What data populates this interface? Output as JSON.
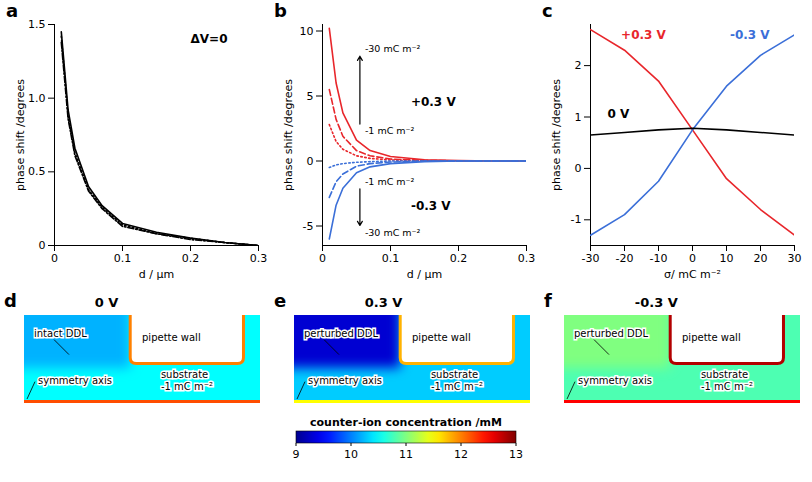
{
  "chart_data": [
    {
      "panel": "a",
      "type": "line",
      "x": [
        0.01,
        0.02,
        0.03,
        0.05,
        0.07,
        0.1,
        0.15,
        0.2,
        0.25,
        0.3
      ],
      "series": [
        {
          "color": "#000000",
          "line_style": "solid",
          "values": [
            1.45,
            0.92,
            0.66,
            0.4,
            0.27,
            0.15,
            0.09,
            0.05,
            0.02,
            0
          ]
        },
        {
          "color": "#000000",
          "line_style": "dashdot",
          "values": [
            1.38,
            0.86,
            0.61,
            0.37,
            0.25,
            0.13,
            0.08,
            0.04,
            0.02,
            0
          ]
        },
        {
          "color": "#000000",
          "line_style": "dotted",
          "values": [
            1.42,
            0.88,
            0.63,
            0.38,
            0.26,
            0.14,
            0.08,
            0.05,
            0.02,
            0
          ]
        }
      ],
      "xlabel": "d / μm",
      "ylabel": "phase shift /degrees",
      "xlim": [
        0,
        0.3
      ],
      "xticks": [
        0,
        0.1,
        0.2,
        0.3
      ],
      "ylim": [
        0,
        1.5
      ],
      "yticks": [
        0,
        0.5,
        {
          "value": 1,
          "label": "1.0"
        },
        1.5
      ],
      "annotations": [
        {
          "text": "ΔV=0",
          "x": 0.2,
          "y": 1.4
        }
      ]
    },
    {
      "panel": "b",
      "type": "line",
      "x": [
        0.01,
        0.02,
        0.03,
        0.05,
        0.07,
        0.1,
        0.15,
        0.2,
        0.25,
        0.3
      ],
      "series": [
        {
          "color": "#e8262b",
          "line_style": "solid",
          "values": [
            10.2,
            6,
            3.7,
            1.6,
            0.8,
            0.35,
            0.1,
            0.03,
            0,
            0
          ]
        },
        {
          "color": "#e8262b",
          "line_style": "dashed",
          "values": [
            5.5,
            3.2,
            1.9,
            0.8,
            0.4,
            0.15,
            0.05,
            0.01,
            0,
            0
          ]
        },
        {
          "color": "#e8262b",
          "line_style": "dotted",
          "values": [
            2.8,
            1.5,
            0.9,
            0.4,
            0.2,
            0.08,
            0.02,
            0,
            0,
            0
          ]
        },
        {
          "color": "#3b6fd8",
          "line_style": "dotted",
          "values": [
            -0.5,
            -0.3,
            -0.2,
            -0.1,
            -0.05,
            0,
            0,
            0,
            0,
            0
          ]
        },
        {
          "color": "#3b6fd8",
          "line_style": "dashed",
          "values": [
            -2.8,
            -1.6,
            -1,
            -0.4,
            -0.2,
            -0.08,
            0,
            0,
            0,
            0
          ]
        },
        {
          "color": "#3b6fd8",
          "line_style": "solid",
          "values": [
            -6,
            -3.4,
            -2.1,
            -0.9,
            -0.45,
            -0.2,
            -0.05,
            0,
            0,
            0
          ]
        }
      ],
      "xlabel": "d / μm",
      "ylabel": "phase shift /degrees",
      "xlim": [
        0,
        0.3
      ],
      "xticks": [
        0,
        0.1,
        0.2,
        0.3
      ],
      "ylim": [
        -6.5,
        10.5
      ],
      "yticks": [
        -5,
        0,
        5,
        10
      ],
      "annotations": [
        {
          "text": "-1 mC m⁻²",
          "x": 0.055,
          "y": 2.3
        },
        {
          "text": "-30 mC m⁻²",
          "x": 0.055,
          "y": 8.6
        },
        {
          "text": "-1 mC m⁻²",
          "x": 0.055,
          "y": -1.6
        },
        {
          "text": "-30 mC m⁻²",
          "x": 0.055,
          "y": -5.5
        },
        {
          "text": "+0.3 V",
          "x": 0.13,
          "y": 4.5
        },
        {
          "text": "-0.3 V",
          "x": 0.13,
          "y": -3.5
        }
      ]
    },
    {
      "panel": "c",
      "type": "line",
      "x": [
        -30,
        -20,
        -10,
        0,
        10,
        20,
        30
      ],
      "series": [
        {
          "color": "#e8262b",
          "line_style": "solid",
          "values": [
            2.7,
            2.3,
            1.7,
            0.75,
            -0.2,
            -0.8,
            -1.3
          ]
        },
        {
          "color": "#3b6fd8",
          "line_style": "solid",
          "values": [
            -1.3,
            -0.9,
            -0.25,
            0.75,
            1.6,
            2.2,
            2.6
          ]
        },
        {
          "color": "#000000",
          "line_style": "solid",
          "values": [
            0.65,
            0.7,
            0.75,
            0.78,
            0.75,
            0.7,
            0.65
          ]
        }
      ],
      "xlabel": "σ/ mC m⁻²",
      "ylabel": "phase shift /degrees",
      "xlim": [
        -30,
        30
      ],
      "xticks": [
        -30,
        -20,
        -10,
        0,
        10,
        20,
        30
      ],
      "ylim": [
        -1.5,
        2.8
      ],
      "yticks": [
        -1,
        0,
        1,
        2
      ],
      "annotations": [
        {
          "text": "+0.3 V",
          "x": -21,
          "y": 2.6,
          "color": "#e8262b"
        },
        {
          "text": "-0.3 V",
          "x": 11,
          "y": 2.6,
          "color": "#3b6fd8"
        },
        {
          "text": "0 V",
          "x": -25,
          "y": 1.05,
          "color": "#000000"
        }
      ]
    }
  ],
  "simulations": {
    "panels": [
      {
        "letter": "d",
        "title": "0 V",
        "ddl_label": "intact DDL",
        "axis_label": "symmetry axis",
        "wall_label": "pipette wall",
        "substrate_label": [
          "substrate",
          "-1 mC m⁻²"
        ],
        "concentration": {
          "inside": 10.2,
          "outside": 10.5,
          "wall_surface": 12.0,
          "substrate_surface": 12.2
        }
      },
      {
        "letter": "e",
        "title": "0.3 V",
        "ddl_label": "perturbed DDL",
        "axis_label": "symmetry axis",
        "wall_label": "pipette wall",
        "substrate_label": [
          "substrate",
          "-1 mC m⁻²"
        ],
        "concentration": {
          "inside": 9.3,
          "outside": 10.3,
          "wall_surface": 11.8,
          "substrate_surface": 11.5
        }
      },
      {
        "letter": "f",
        "title": "-0.3 V",
        "ddl_label": "perturbed DDL",
        "axis_label": "symmetry axis",
        "wall_label": "pipette wall",
        "substrate_label": [
          "substrate",
          "-1 mC m⁻²"
        ],
        "concentration": {
          "inside": 11.0,
          "outside": 10.8,
          "wall_surface": 12.8,
          "substrate_surface": 12.5
        }
      }
    ],
    "colorbar": {
      "label": "counter-ion concentration /mM",
      "range": [
        9,
        13
      ],
      "ticks": [
        9,
        10,
        11,
        12,
        13
      ]
    }
  }
}
